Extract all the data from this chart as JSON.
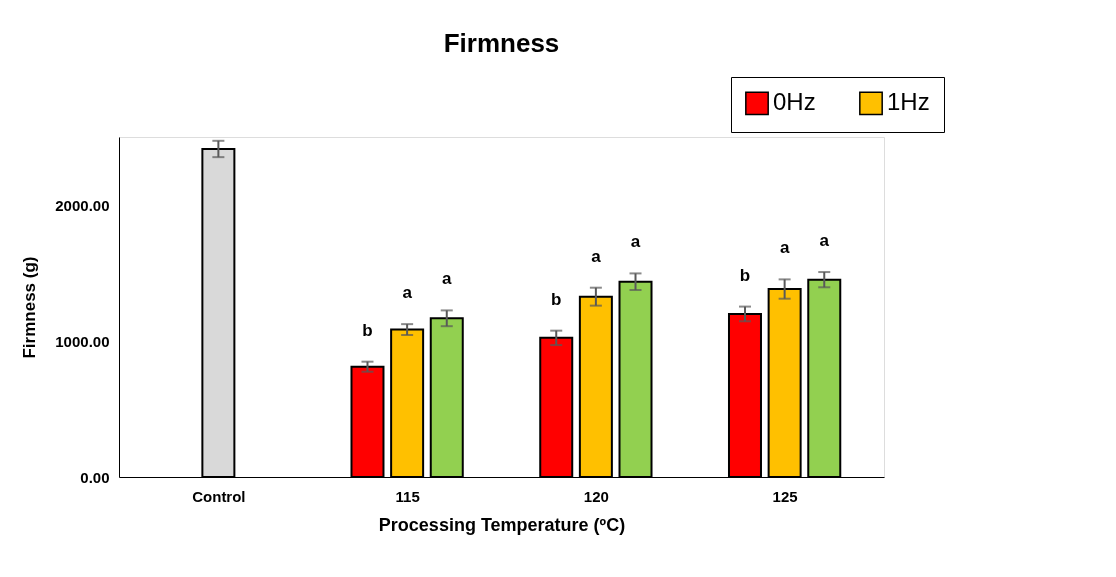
{
  "chart_data": {
    "type": "bar",
    "title": "Firmness",
    "xlabel": "Processing Temperature (ºC)",
    "ylabel": "Firmness (g)",
    "categories": [
      "Control",
      "115",
      "120",
      "125"
    ],
    "series": [
      {
        "color": "#d9d9d9",
        "values": [
          2412,
          null,
          null,
          null
        ],
        "errors": [
          60,
          null,
          null,
          null
        ]
      },
      {
        "name": "0Hz",
        "color": "#ff0000",
        "values": [
          null,
          811,
          1023,
          1199
        ],
        "errors": [
          null,
          37,
          53,
          54
        ],
        "value_labels": [
          null,
          "b",
          "b",
          "b"
        ]
      },
      {
        "name": "1Hz",
        "color": "#ffc000",
        "values": [
          null,
          1084,
          1326,
          1382
        ],
        "errors": [
          null,
          40,
          66,
          71
        ],
        "value_labels": [
          null,
          "a",
          "a",
          "a"
        ]
      },
      {
        "color": "#92d050",
        "values": [
          null,
          1167,
          1436,
          1451
        ],
        "errors": [
          null,
          58,
          61,
          56
        ],
        "value_labels": [
          null,
          "a",
          "a",
          "a"
        ]
      }
    ],
    "ylim": [
      0,
      2500
    ],
    "yticks": [
      {
        "value": 0,
        "label": "0.00"
      },
      {
        "value": 1000,
        "label": "1000.00"
      },
      {
        "value": 2000,
        "label": "2000.00"
      }
    ],
    "grid": false,
    "legend": "top right"
  }
}
